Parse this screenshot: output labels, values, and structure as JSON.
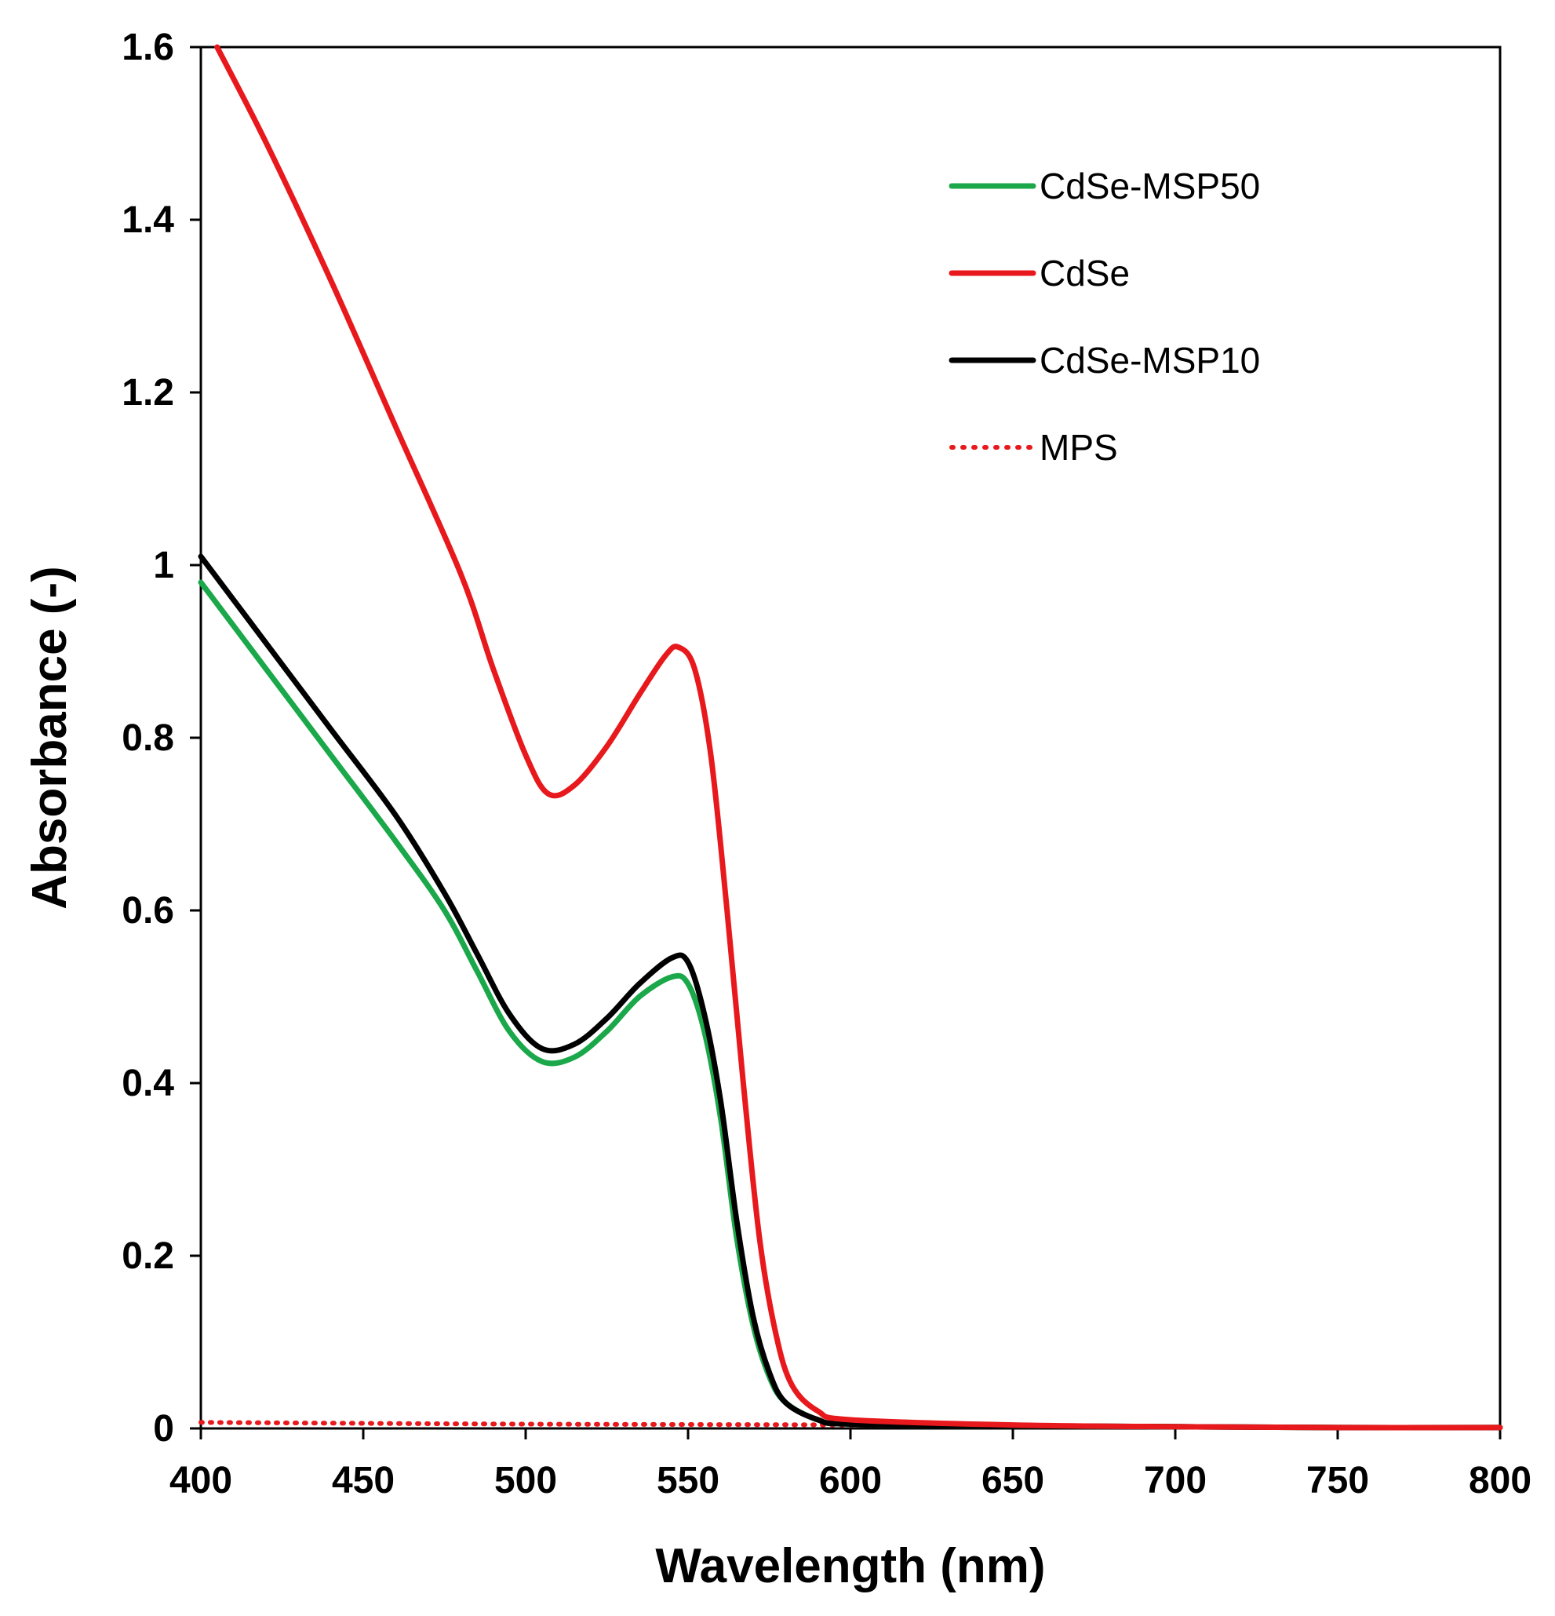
{
  "chart_data": {
    "type": "line",
    "xlabel": "Wavelength (nm)",
    "ylabel": "Absorbance (-)",
    "xlim": [
      400,
      800
    ],
    "ylim": [
      0,
      1.6
    ],
    "x_ticks": [
      400,
      450,
      500,
      550,
      600,
      650,
      700,
      750,
      800
    ],
    "y_ticks": [
      0,
      0.2,
      0.4,
      0.6,
      0.8,
      1,
      1.2,
      1.4,
      1.6
    ],
    "y_tick_labels": [
      "0",
      "0.2",
      "0.4",
      "0.6",
      "0.8",
      "1",
      "1.2",
      "1.4",
      "1.6"
    ],
    "grid": false,
    "legend_position": "top-right",
    "series": [
      {
        "name": "CdSe-MSP50",
        "color": "#1aa84a",
        "style": "solid",
        "points": [
          [
            400,
            0.98
          ],
          [
            420,
            0.88
          ],
          [
            440,
            0.78
          ],
          [
            460,
            0.68
          ],
          [
            475,
            0.6
          ],
          [
            485,
            0.53
          ],
          [
            495,
            0.46
          ],
          [
            505,
            0.425
          ],
          [
            515,
            0.43
          ],
          [
            525,
            0.46
          ],
          [
            535,
            0.5
          ],
          [
            545,
            0.523
          ],
          [
            550,
            0.515
          ],
          [
            555,
            0.46
          ],
          [
            560,
            0.36
          ],
          [
            565,
            0.22
          ],
          [
            570,
            0.12
          ],
          [
            575,
            0.06
          ],
          [
            580,
            0.03
          ],
          [
            590,
            0.01
          ],
          [
            600,
            0.005
          ],
          [
            650,
            0.003
          ],
          [
            700,
            0.002
          ],
          [
            750,
            0.001
          ],
          [
            800,
            0.001
          ]
        ]
      },
      {
        "name": "CdSe",
        "color": "#e8191c",
        "style": "solid",
        "points": [
          [
            405,
            1.6
          ],
          [
            420,
            1.49
          ],
          [
            440,
            1.33
          ],
          [
            460,
            1.16
          ],
          [
            480,
            0.99
          ],
          [
            490,
            0.88
          ],
          [
            500,
            0.78
          ],
          [
            507,
            0.735
          ],
          [
            515,
            0.745
          ],
          [
            525,
            0.79
          ],
          [
            535,
            0.85
          ],
          [
            543,
            0.895
          ],
          [
            547,
            0.905
          ],
          [
            552,
            0.88
          ],
          [
            557,
            0.78
          ],
          [
            562,
            0.6
          ],
          [
            567,
            0.4
          ],
          [
            572,
            0.22
          ],
          [
            577,
            0.11
          ],
          [
            582,
            0.05
          ],
          [
            590,
            0.02
          ],
          [
            600,
            0.01
          ],
          [
            650,
            0.004
          ],
          [
            700,
            0.002
          ],
          [
            750,
            0.001
          ],
          [
            800,
            0.001
          ]
        ]
      },
      {
        "name": "CdSe-MSP10",
        "color": "#000000",
        "style": "solid",
        "points": [
          [
            400,
            1.01
          ],
          [
            420,
            0.91
          ],
          [
            440,
            0.81
          ],
          [
            460,
            0.71
          ],
          [
            475,
            0.62
          ],
          [
            485,
            0.55
          ],
          [
            495,
            0.48
          ],
          [
            505,
            0.44
          ],
          [
            515,
            0.445
          ],
          [
            525,
            0.475
          ],
          [
            535,
            0.515
          ],
          [
            545,
            0.545
          ],
          [
            550,
            0.54
          ],
          [
            555,
            0.48
          ],
          [
            560,
            0.38
          ],
          [
            565,
            0.24
          ],
          [
            570,
            0.13
          ],
          [
            575,
            0.065
          ],
          [
            580,
            0.03
          ],
          [
            590,
            0.01
          ],
          [
            600,
            0.005
          ],
          [
            650,
            0.003
          ],
          [
            700,
            0.002
          ],
          [
            750,
            0.001
          ],
          [
            800,
            0.001
          ]
        ]
      },
      {
        "name": "MPS",
        "color": "#e8191c",
        "style": "dotted",
        "points": [
          [
            400,
            0.007
          ],
          [
            500,
            0.005
          ],
          [
            600,
            0.004
          ],
          [
            700,
            0.002
          ],
          [
            800,
            0.001
          ]
        ]
      }
    ]
  }
}
